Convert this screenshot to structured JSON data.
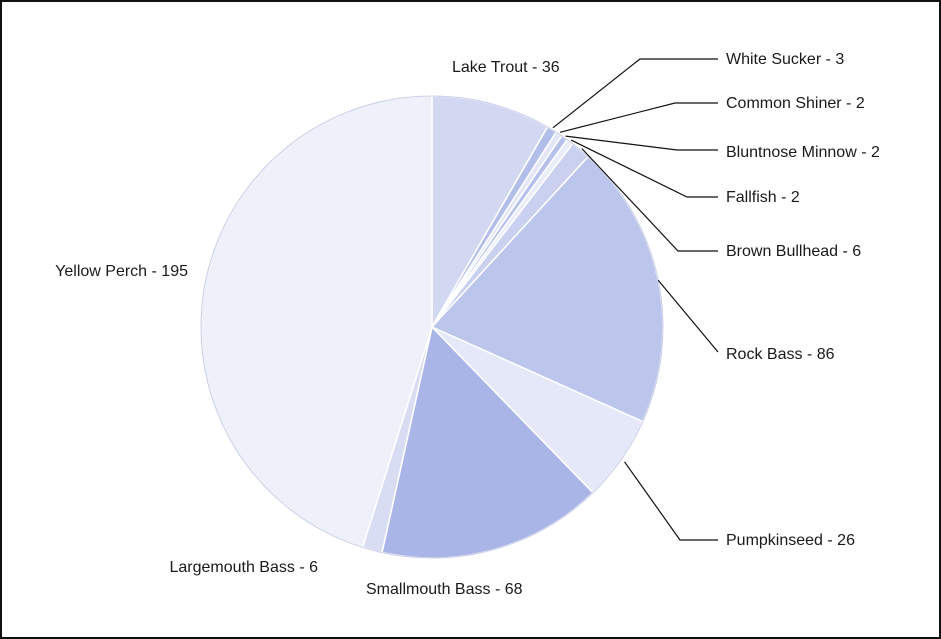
{
  "chart_data": {
    "type": "pie",
    "title": "",
    "start": "top",
    "direction": "clockwise",
    "slices": [
      {
        "name": "Lake Trout",
        "value": 36,
        "label": "Lake Trout - 36",
        "color": "#d3d8f2"
      },
      {
        "name": "White Sucker",
        "value": 3,
        "label": "White Sucker - 3",
        "color": "#b3bde9"
      },
      {
        "name": "Common Shiner",
        "value": 2,
        "label": "Common Shiner - 2",
        "color": "#e2e6f7"
      },
      {
        "name": "Bluntnose Minnow",
        "value": 2,
        "label": "Bluntnose Minnow - 2",
        "color": "#b6c0ea"
      },
      {
        "name": "Fallfish",
        "value": 2,
        "label": "Fallfish - 2",
        "color": "#e9ecf9"
      },
      {
        "name": "Brown Bullhead",
        "value": 6,
        "label": "Brown Bullhead - 6",
        "color": "#c9d0f0"
      },
      {
        "name": "Rock Bass",
        "value": 86,
        "label": "Rock Bass - 86",
        "color": "#bcc5ec"
      },
      {
        "name": "Pumpkinseed",
        "value": 26,
        "label": "Pumpkinseed - 26",
        "color": "#e4e8f8"
      },
      {
        "name": "Smallmouth Bass",
        "value": 68,
        "label": "Smallmouth Bass - 68",
        "color": "#aab5e7"
      },
      {
        "name": "Largemouth Bass",
        "value": 6,
        "label": "Largemouth Bass - 6",
        "color": "#d8ddf4"
      },
      {
        "name": "Yellow Perch",
        "value": 195,
        "label": "Yellow Perch - 195",
        "color": "#eef0fa"
      }
    ]
  }
}
